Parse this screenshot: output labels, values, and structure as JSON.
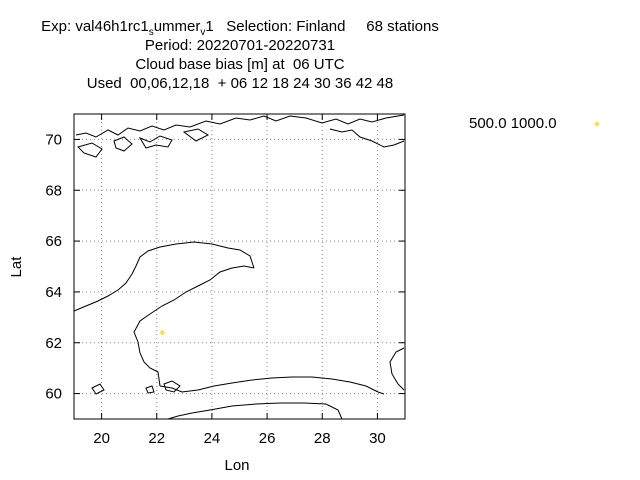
{
  "title": {
    "exp_prefix": "Exp: val46h1rc1",
    "exp_sub1": "s",
    "exp_mid": "ummer",
    "exp_sub2": "v",
    "exp_suffix": "1   Selection: Finland     68 stations",
    "period": "Period: 20220701-20220731",
    "variable": "Cloud base bias [m] at  06 UTC",
    "used": "Used  00,06,12,18  + 06 12 18 24 30 36 42 48"
  },
  "chart_data": {
    "type": "scatter",
    "xlabel": "Lon",
    "ylabel": "Lat",
    "xlim": [
      19,
      31
    ],
    "ylim": [
      59,
      71
    ],
    "xticks": [
      20,
      22,
      24,
      26,
      28,
      30
    ],
    "yticks": [
      60,
      62,
      64,
      66,
      68,
      70
    ],
    "grid": true,
    "legend_position": "top-right-outside",
    "series": [
      {
        "name": "500.0 1000.0",
        "color": "#f2e14c",
        "marker": "diamond",
        "points": [
          {
            "x": 22.2,
            "y": 62.4
          }
        ]
      }
    ]
  }
}
